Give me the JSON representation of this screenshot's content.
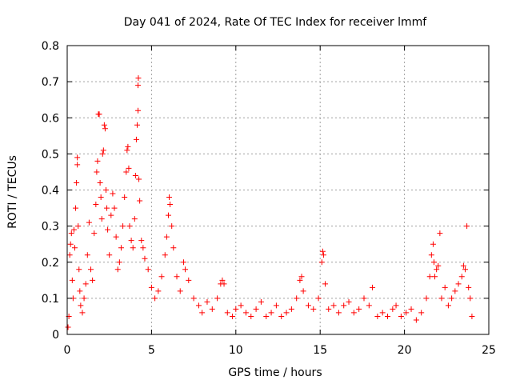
{
  "chart_data": {
    "type": "scatter",
    "title": "Day 041 of 2024, Rate Of TEC Index for receiver lmmf",
    "xlabel": "GPS time / hours",
    "ylabel": "ROTI / TECUs",
    "xlim": [
      0,
      25
    ],
    "ylim": [
      0,
      0.8
    ],
    "xticks": [
      0,
      5,
      10,
      15,
      20,
      25
    ],
    "yticks": [
      0,
      0.1,
      0.2,
      0.3,
      0.4,
      0.5,
      0.6,
      0.7,
      0.8
    ],
    "xtick_labels": [
      "0",
      "5",
      "10",
      "15",
      "20",
      "25"
    ],
    "ytick_labels": [
      "0",
      "0.1",
      "0.2",
      "0.3",
      "0.4",
      "0.5",
      "0.6",
      "0.7",
      "0.8"
    ],
    "grid": true,
    "marker": "plus",
    "color": "#ff0000",
    "series": [
      {
        "name": "ROTI",
        "points": [
          [
            0.05,
            0.02
          ],
          [
            0.1,
            0.05
          ],
          [
            0.15,
            0.22
          ],
          [
            0.2,
            0.25
          ],
          [
            0.25,
            0.28
          ],
          [
            0.3,
            0.15
          ],
          [
            0.35,
            0.1
          ],
          [
            0.4,
            0.29
          ],
          [
            0.45,
            0.24
          ],
          [
            0.5,
            0.35
          ],
          [
            0.55,
            0.42
          ],
          [
            0.6,
            0.47
          ],
          [
            0.6,
            0.49
          ],
          [
            0.65,
            0.3
          ],
          [
            0.7,
            0.18
          ],
          [
            0.75,
            0.12
          ],
          [
            0.8,
            0.08
          ],
          [
            0.9,
            0.06
          ],
          [
            1.0,
            0.1
          ],
          [
            1.1,
            0.14
          ],
          [
            1.2,
            0.22
          ],
          [
            1.3,
            0.31
          ],
          [
            1.4,
            0.18
          ],
          [
            1.5,
            0.15
          ],
          [
            1.6,
            0.28
          ],
          [
            1.7,
            0.36
          ],
          [
            1.75,
            0.45
          ],
          [
            1.8,
            0.48
          ],
          [
            1.85,
            0.61
          ],
          [
            1.9,
            0.61
          ],
          [
            1.95,
            0.42
          ],
          [
            2.0,
            0.38
          ],
          [
            2.05,
            0.32
          ],
          [
            2.1,
            0.5
          ],
          [
            2.15,
            0.51
          ],
          [
            2.2,
            0.58
          ],
          [
            2.25,
            0.57
          ],
          [
            2.3,
            0.4
          ],
          [
            2.35,
            0.35
          ],
          [
            2.4,
            0.29
          ],
          [
            2.5,
            0.22
          ],
          [
            2.6,
            0.33
          ],
          [
            2.7,
            0.39
          ],
          [
            2.8,
            0.35
          ],
          [
            2.9,
            0.27
          ],
          [
            3.0,
            0.18
          ],
          [
            3.1,
            0.2
          ],
          [
            3.2,
            0.24
          ],
          [
            3.3,
            0.3
          ],
          [
            3.4,
            0.38
          ],
          [
            3.5,
            0.45
          ],
          [
            3.55,
            0.51
          ],
          [
            3.6,
            0.52
          ],
          [
            3.65,
            0.46
          ],
          [
            3.7,
            0.3
          ],
          [
            3.8,
            0.26
          ],
          [
            3.9,
            0.24
          ],
          [
            4.0,
            0.32
          ],
          [
            4.05,
            0.44
          ],
          [
            4.1,
            0.54
          ],
          [
            4.15,
            0.58
          ],
          [
            4.2,
            0.62
          ],
          [
            4.2,
            0.69
          ],
          [
            4.22,
            0.71
          ],
          [
            4.25,
            0.43
          ],
          [
            4.3,
            0.37
          ],
          [
            4.4,
            0.26
          ],
          [
            4.5,
            0.24
          ],
          [
            4.6,
            0.21
          ],
          [
            4.8,
            0.18
          ],
          [
            5.0,
            0.13
          ],
          [
            5.2,
            0.1
          ],
          [
            5.4,
            0.12
          ],
          [
            5.6,
            0.16
          ],
          [
            5.8,
            0.22
          ],
          [
            5.9,
            0.27
          ],
          [
            6.0,
            0.33
          ],
          [
            6.05,
            0.38
          ],
          [
            6.1,
            0.36
          ],
          [
            6.2,
            0.3
          ],
          [
            6.3,
            0.24
          ],
          [
            6.5,
            0.16
          ],
          [
            6.7,
            0.12
          ],
          [
            6.9,
            0.2
          ],
          [
            7.0,
            0.18
          ],
          [
            7.2,
            0.15
          ],
          [
            7.5,
            0.1
          ],
          [
            7.8,
            0.08
          ],
          [
            8.0,
            0.06
          ],
          [
            8.3,
            0.09
          ],
          [
            8.6,
            0.07
          ],
          [
            8.9,
            0.1
          ],
          [
            9.1,
            0.14
          ],
          [
            9.2,
            0.15
          ],
          [
            9.3,
            0.14
          ],
          [
            9.5,
            0.06
          ],
          [
            9.8,
            0.05
          ],
          [
            10.0,
            0.07
          ],
          [
            10.3,
            0.08
          ],
          [
            10.6,
            0.06
          ],
          [
            10.9,
            0.05
          ],
          [
            11.2,
            0.07
          ],
          [
            11.5,
            0.09
          ],
          [
            11.8,
            0.05
          ],
          [
            12.1,
            0.06
          ],
          [
            12.4,
            0.08
          ],
          [
            12.7,
            0.05
          ],
          [
            13.0,
            0.06
          ],
          [
            13.3,
            0.07
          ],
          [
            13.6,
            0.1
          ],
          [
            13.8,
            0.15
          ],
          [
            13.9,
            0.16
          ],
          [
            14.0,
            0.12
          ],
          [
            14.3,
            0.08
          ],
          [
            14.6,
            0.07
          ],
          [
            14.9,
            0.1
          ],
          [
            15.1,
            0.2
          ],
          [
            15.15,
            0.23
          ],
          [
            15.2,
            0.22
          ],
          [
            15.3,
            0.14
          ],
          [
            15.5,
            0.07
          ],
          [
            15.8,
            0.08
          ],
          [
            16.1,
            0.06
          ],
          [
            16.4,
            0.08
          ],
          [
            16.7,
            0.09
          ],
          [
            17.0,
            0.06
          ],
          [
            17.3,
            0.07
          ],
          [
            17.6,
            0.1
          ],
          [
            17.9,
            0.08
          ],
          [
            18.1,
            0.13
          ],
          [
            18.4,
            0.05
          ],
          [
            18.7,
            0.06
          ],
          [
            19.0,
            0.05
          ],
          [
            19.3,
            0.07
          ],
          [
            19.5,
            0.08
          ],
          [
            19.8,
            0.05
          ],
          [
            20.1,
            0.06
          ],
          [
            20.4,
            0.07
          ],
          [
            20.7,
            0.04
          ],
          [
            21.0,
            0.06
          ],
          [
            21.3,
            0.1
          ],
          [
            21.5,
            0.16
          ],
          [
            21.6,
            0.22
          ],
          [
            21.7,
            0.25
          ],
          [
            21.75,
            0.2
          ],
          [
            21.8,
            0.16
          ],
          [
            21.9,
            0.18
          ],
          [
            22.0,
            0.19
          ],
          [
            22.1,
            0.28
          ],
          [
            22.2,
            0.1
          ],
          [
            22.4,
            0.13
          ],
          [
            22.6,
            0.08
          ],
          [
            22.8,
            0.1
          ],
          [
            23.0,
            0.12
          ],
          [
            23.2,
            0.14
          ],
          [
            23.4,
            0.16
          ],
          [
            23.5,
            0.19
          ],
          [
            23.6,
            0.18
          ],
          [
            23.7,
            0.3
          ],
          [
            23.8,
            0.13
          ],
          [
            23.9,
            0.1
          ],
          [
            24.0,
            0.05
          ]
        ]
      }
    ]
  }
}
